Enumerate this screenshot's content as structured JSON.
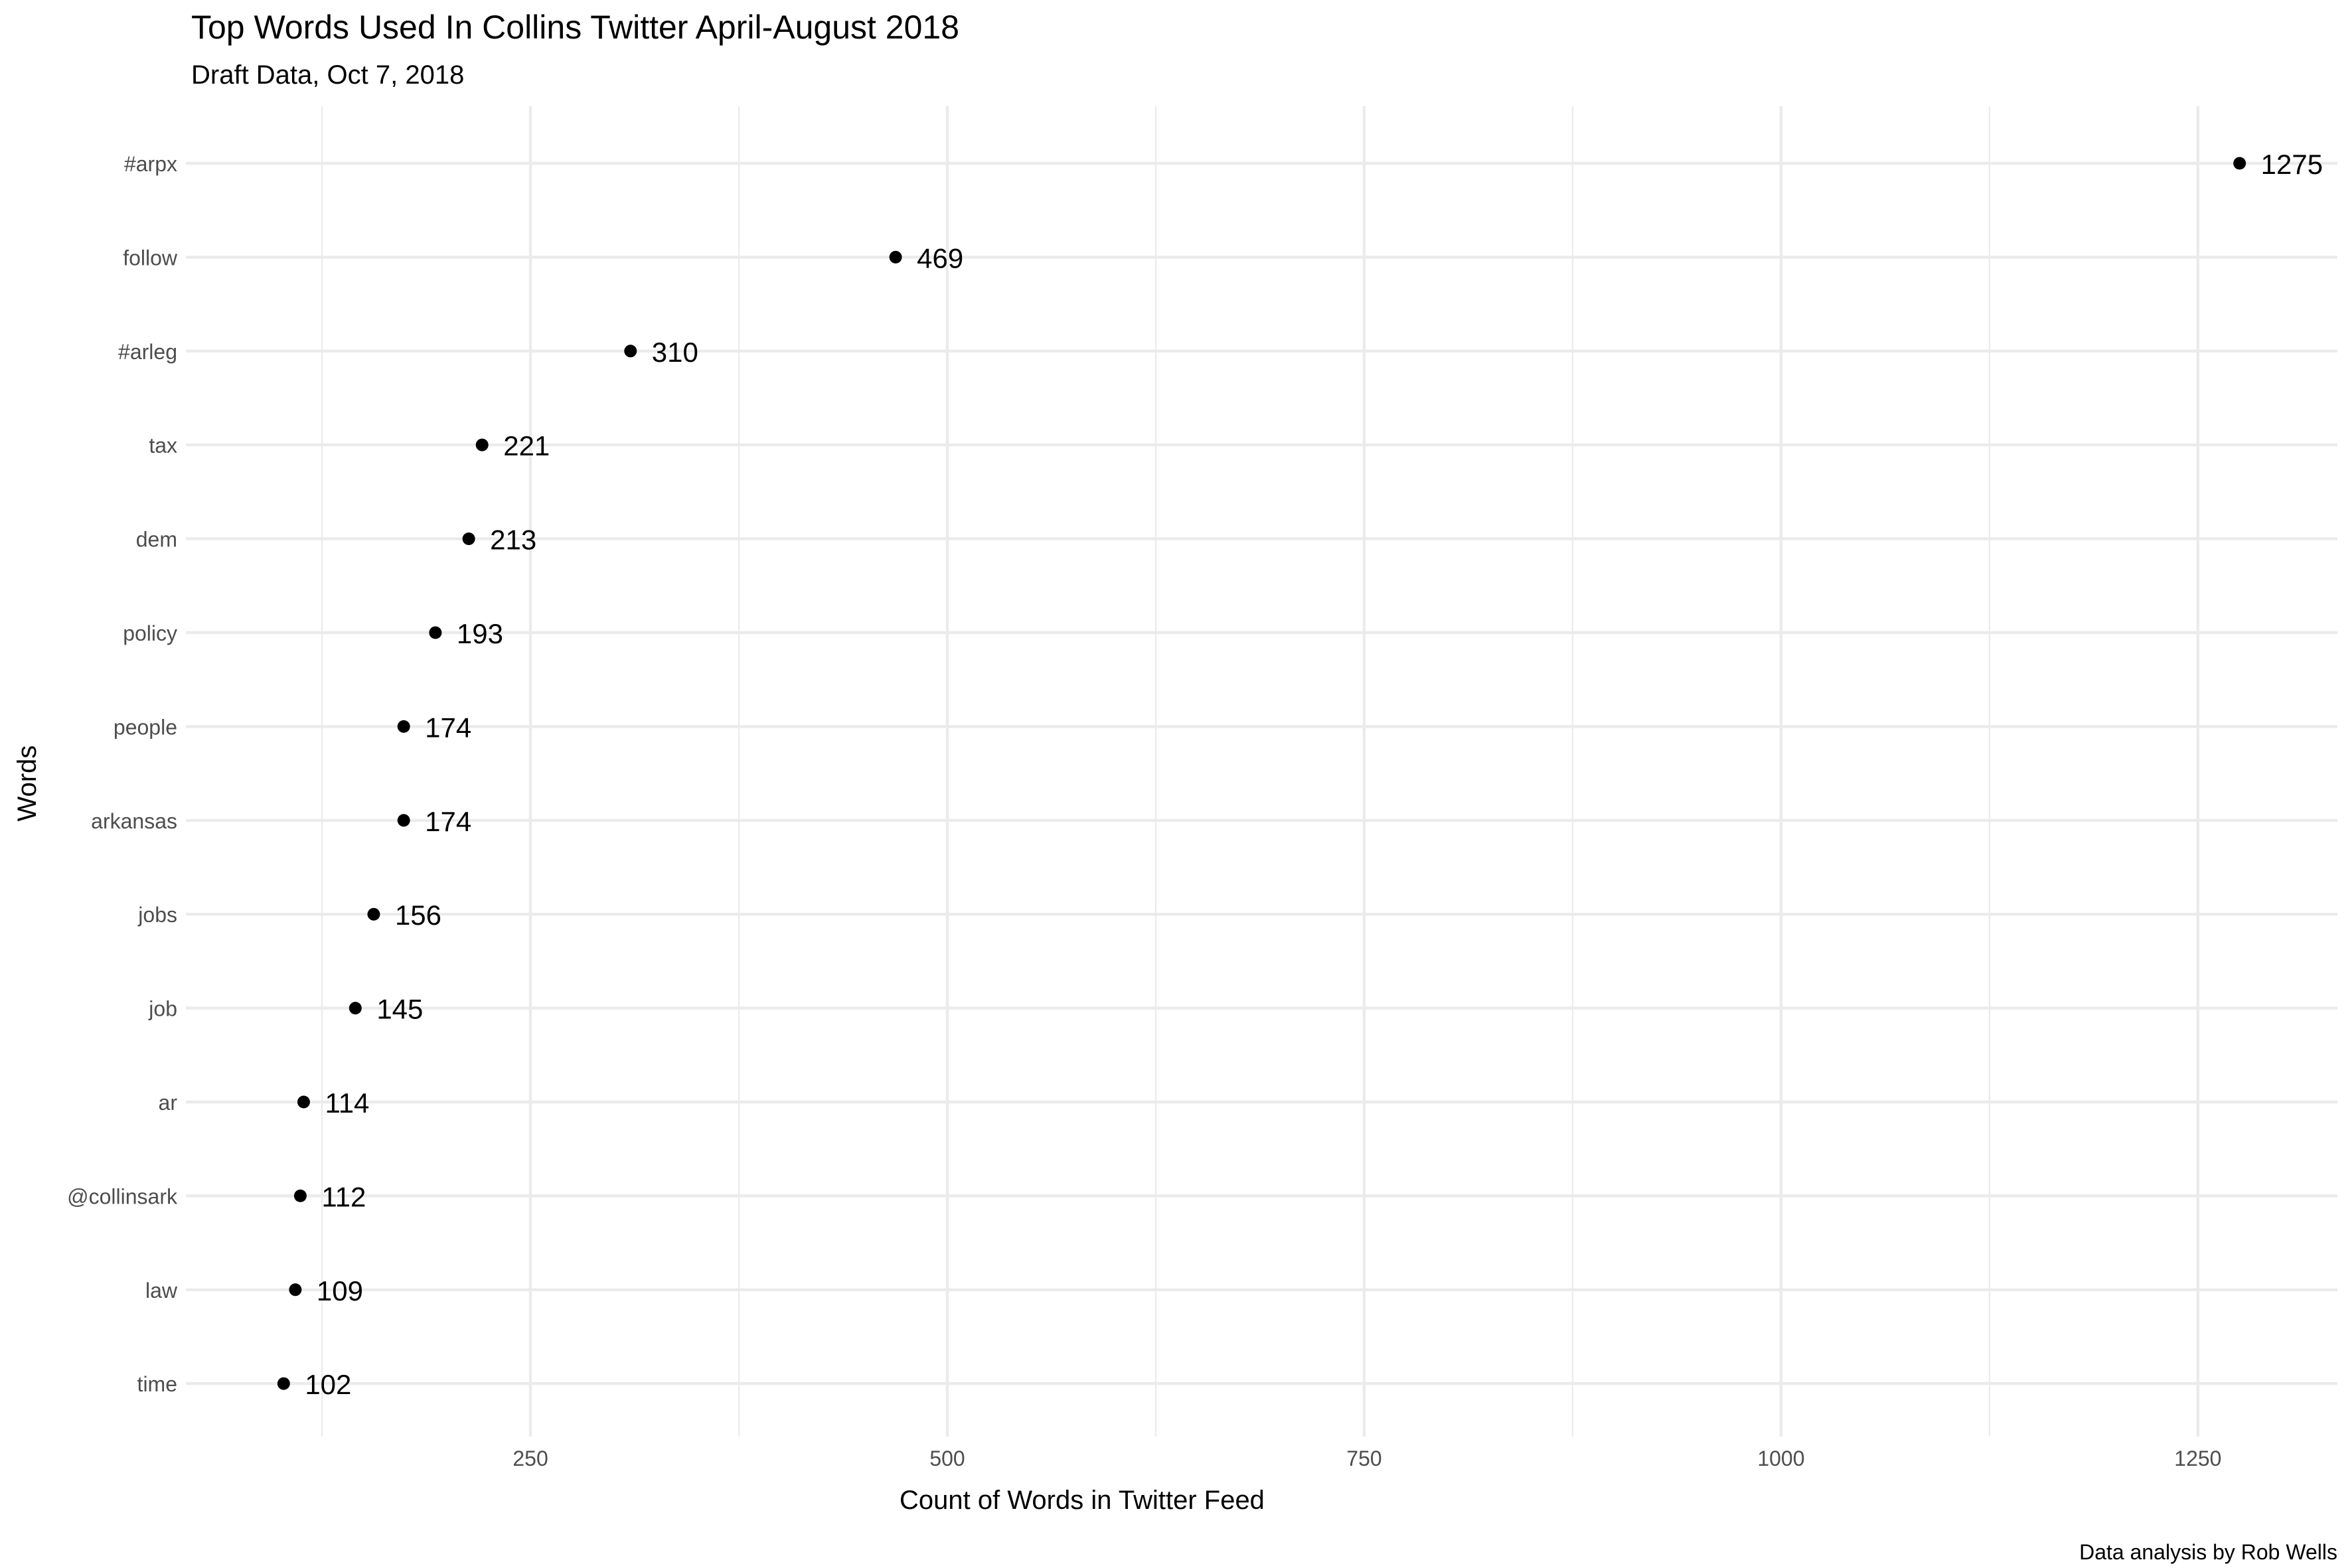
{
  "chart_data": {
    "type": "scatter",
    "title": "Top Words Used In Collins Twitter April-August 2018",
    "subtitle": "Draft Data, Oct 7, 2018",
    "xlabel": "Count of Words in Twitter Feed",
    "ylabel": "Words",
    "caption": "Data analysis by Rob Wells",
    "categories": [
      "#arpx",
      "follow",
      "#arleg",
      "tax",
      "dem",
      "policy",
      "people",
      "arkansas",
      "jobs",
      "job",
      "ar",
      "@collinsark",
      "law",
      "time"
    ],
    "values": [
      1275,
      469,
      310,
      221,
      213,
      193,
      174,
      174,
      156,
      145,
      114,
      112,
      109,
      102
    ],
    "xlim": [
      43.35,
      1333.65
    ],
    "xticks": [
      250,
      500,
      750,
      1000,
      1250
    ],
    "xtick_labels": [
      "250",
      "500",
      "750",
      "1000",
      "1250"
    ],
    "x_minor_gridlines": [
      125,
      375,
      625,
      875,
      1125
    ],
    "grid": true,
    "legend": "none",
    "point_color": "#000000",
    "gridline_color": "#ebebeb",
    "background_color": "#ffffff"
  }
}
